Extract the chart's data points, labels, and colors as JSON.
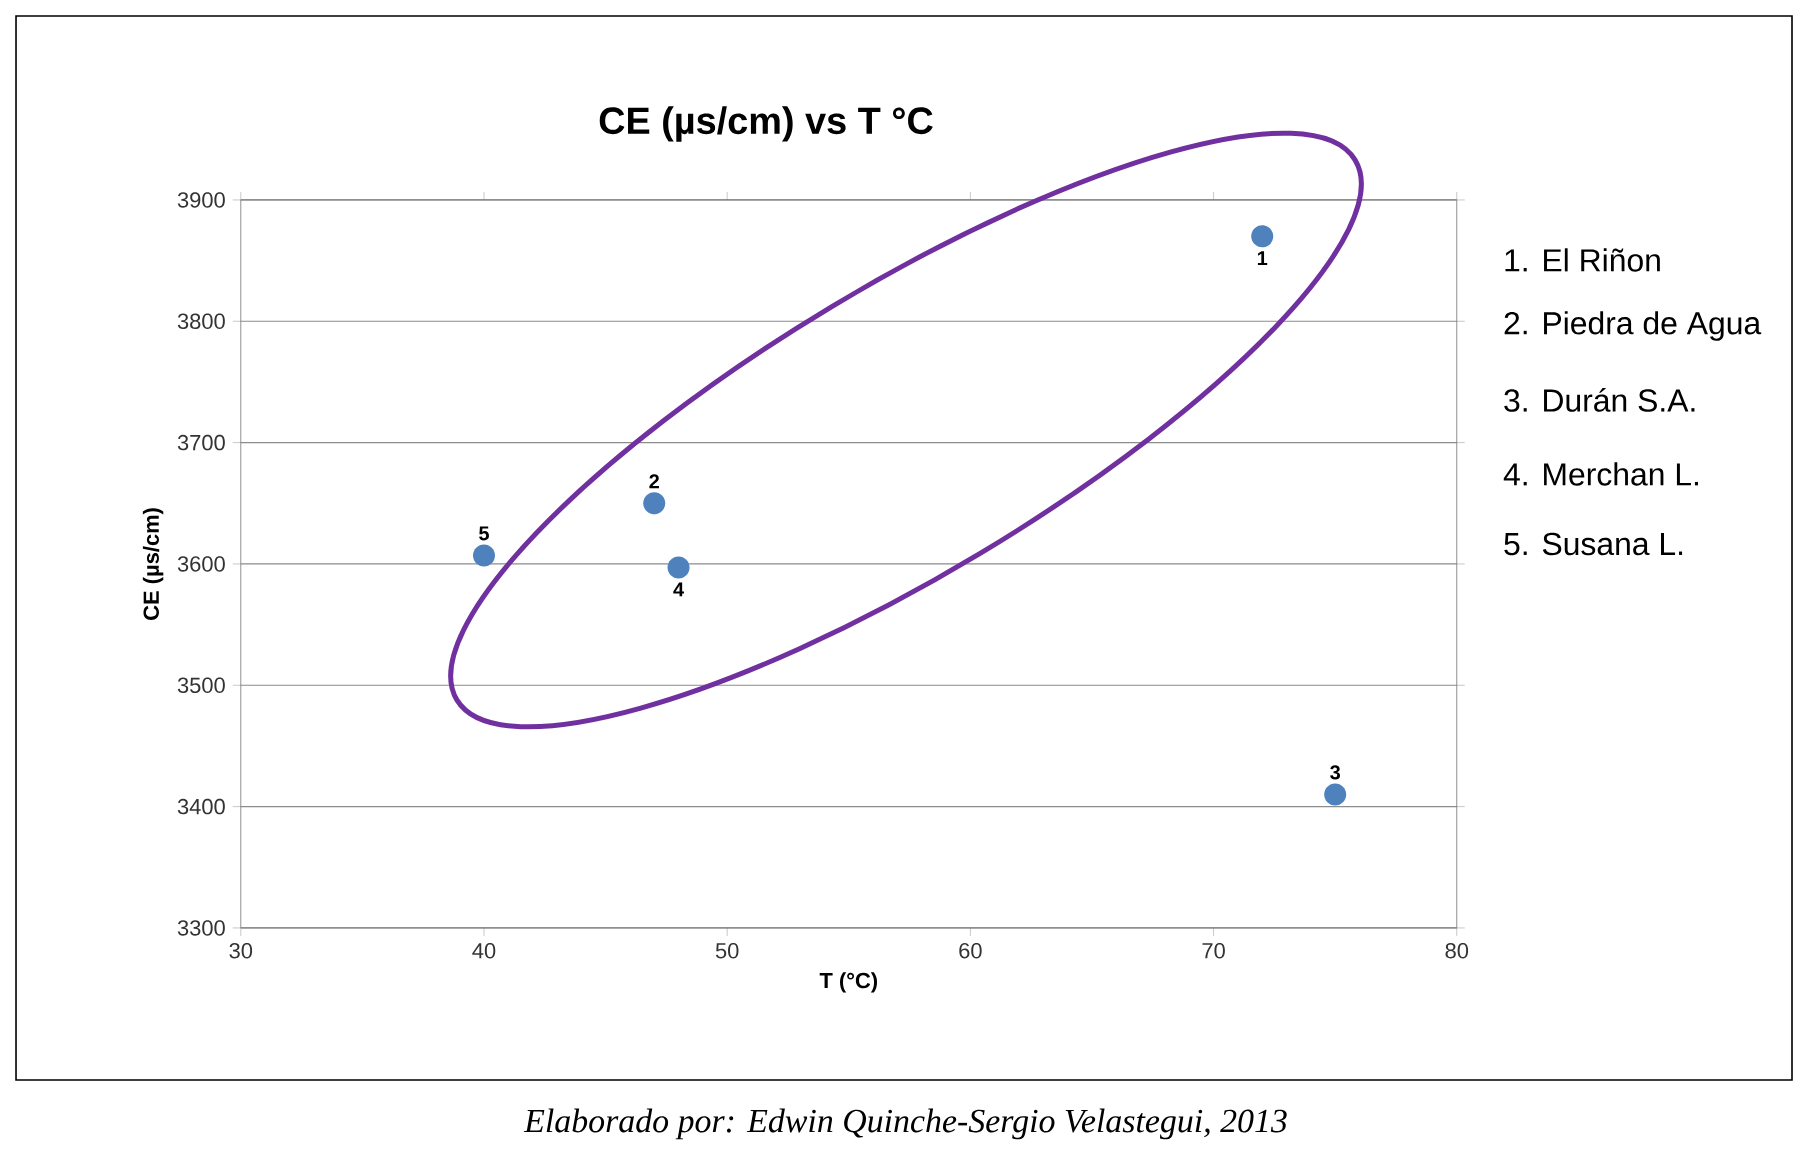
{
  "chart_data": {
    "type": "scatter",
    "title": "CE (µs/cm)  vs  T °C",
    "xlabel": "T (°C)",
    "ylabel": "CE (µs/cm)",
    "x": [
      72,
      47,
      75,
      48,
      40
    ],
    "values": [
      3870,
      3650,
      3410,
      3597,
      3607
    ],
    "color": "#4f81bd",
    "marker": "circle",
    "grid": "y",
    "xlim": [
      30,
      80
    ],
    "xticks": [
      30,
      40,
      50,
      60,
      70,
      80
    ],
    "ylim": [
      3300,
      3900
    ],
    "yticks": [
      3300,
      3400,
      3500,
      3600,
      3700,
      3800,
      3900
    ],
    "annotations": [
      {
        "text": "1",
        "x": 72,
        "y": 3870
      },
      {
        "text": "2",
        "x": 47,
        "y": 3650
      },
      {
        "text": "3",
        "x": 75,
        "y": 3410
      },
      {
        "text": "4",
        "x": 48,
        "y": 3597
      },
      {
        "text": "5",
        "x": 40,
        "y": 3607
      },
      "1. El Riñon",
      "2. Piedra de Agua",
      "3. Durán S.A.",
      "4. Merchan L.",
      "5. Susana L.",
      "Elaborado por: Edwin Quinche-Sergio Velastegui, 2013"
    ]
  }
}
